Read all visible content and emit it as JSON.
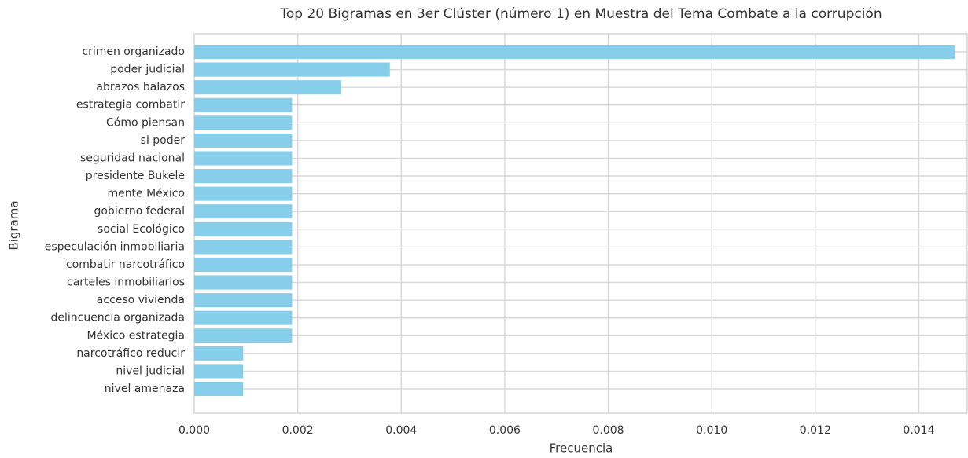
{
  "chart_data": {
    "type": "barh",
    "title": "Top 20 Bigramas en 3er Clúster (número 1) en Muestra del Tema Combate a la corrupción",
    "xlabel": "Frecuencia",
    "ylabel": "Bigrama",
    "categories": [
      "crimen organizado",
      "poder judicial",
      "abrazos balazos",
      "estrategia combatir",
      "Cómo piensan",
      "si poder",
      "seguridad nacional",
      "presidente Bukele",
      "mente México",
      "gobierno federal",
      "social Ecológico",
      "especulación inmobiliaria",
      "combatir narcotráfico",
      "carteles inmobiliarios",
      "acceso vivienda",
      "delincuencia organizada",
      "México estrategia",
      "narcotráfico reducir",
      "nivel judicial",
      "nivel amenaza"
    ],
    "values": [
      0.0147,
      0.00378,
      0.00284,
      0.00189,
      0.00189,
      0.00189,
      0.00189,
      0.00189,
      0.00189,
      0.00189,
      0.00189,
      0.00189,
      0.00189,
      0.00189,
      0.00189,
      0.00189,
      0.00189,
      0.000946,
      0.000946,
      0.000946
    ],
    "color": "#87ceeb",
    "xlim": [
      0,
      0.01495
    ],
    "xticks": [
      {
        "value": 0,
        "label": "0.000"
      },
      {
        "value": 0.002,
        "label": "0.002"
      },
      {
        "value": 0.004,
        "label": "0.004"
      },
      {
        "value": 0.006,
        "label": "0.006"
      },
      {
        "value": 0.008,
        "label": "0.008"
      },
      {
        "value": 0.01,
        "label": "0.010"
      },
      {
        "value": 0.012,
        "label": "0.012"
      },
      {
        "value": 0.014,
        "label": "0.014"
      }
    ],
    "grid": true
  }
}
